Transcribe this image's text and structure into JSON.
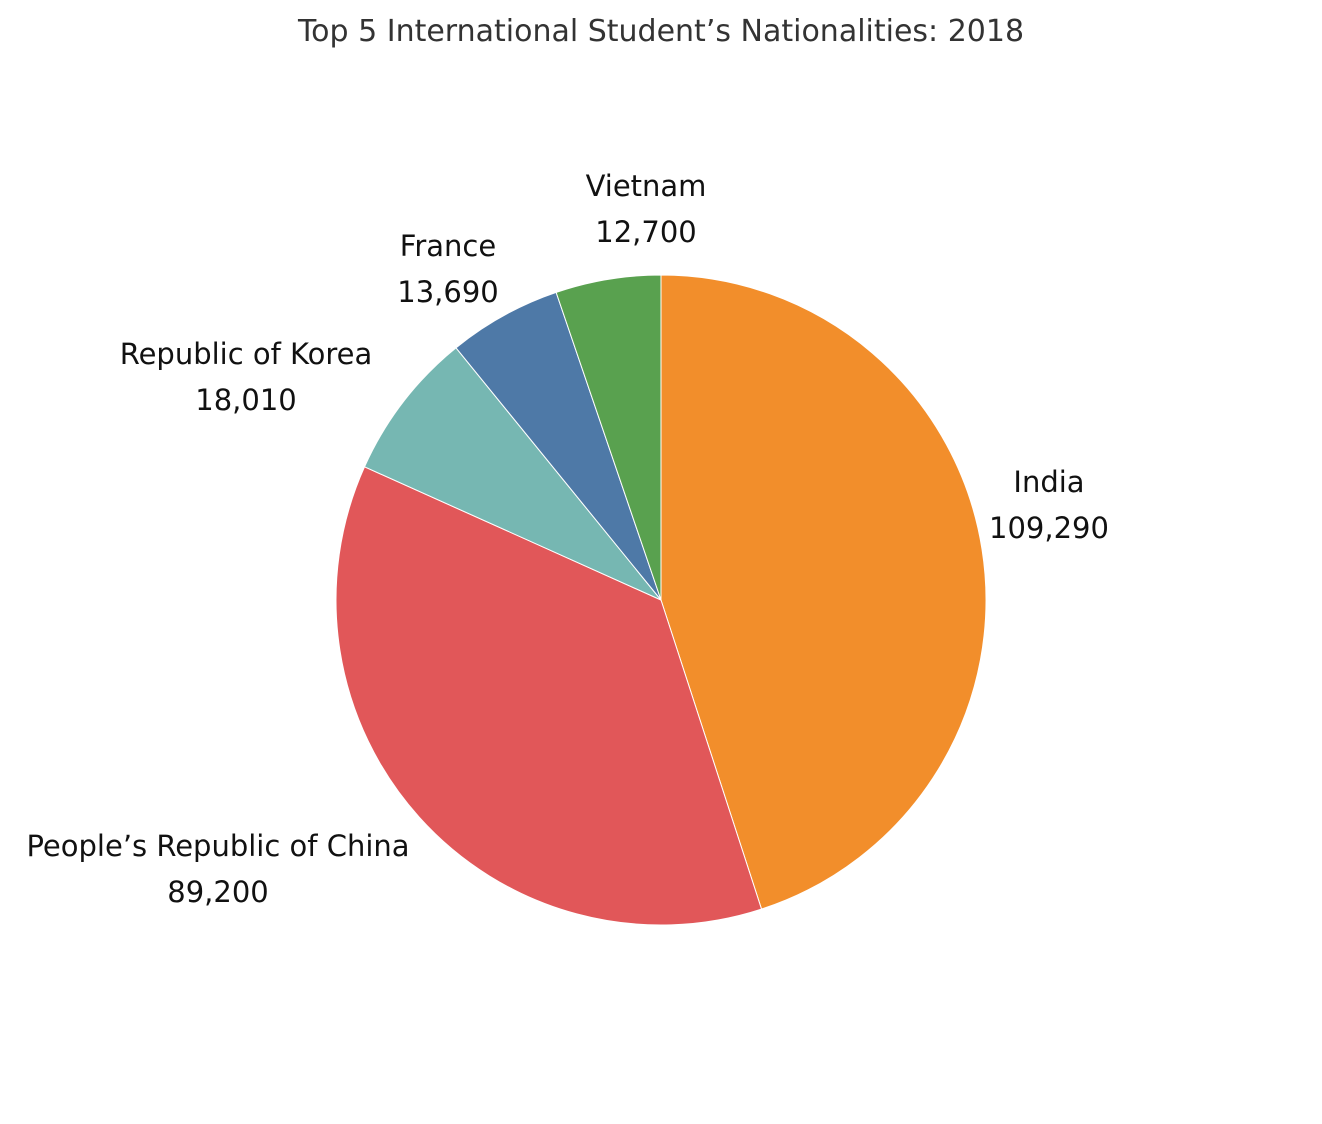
{
  "chart_data": {
    "type": "pie",
    "title": "Top 5 International Student’s Nationalities: 2018",
    "slices": [
      {
        "label": "India",
        "value": 109290,
        "display": "109,290",
        "color": "#f28e2b"
      },
      {
        "label": "People’s Republic of China",
        "value": 89200,
        "display": "89,200",
        "color": "#e15759"
      },
      {
        "label": "Republic of Korea",
        "value": 18010,
        "display": "18,010",
        "color": "#76b7b2"
      },
      {
        "label": "France",
        "value": 13690,
        "display": "13,690",
        "color": "#4e79a7"
      },
      {
        "label": "Vietnam",
        "value": 12700,
        "display": "12,700",
        "color": "#59a14f"
      }
    ]
  }
}
